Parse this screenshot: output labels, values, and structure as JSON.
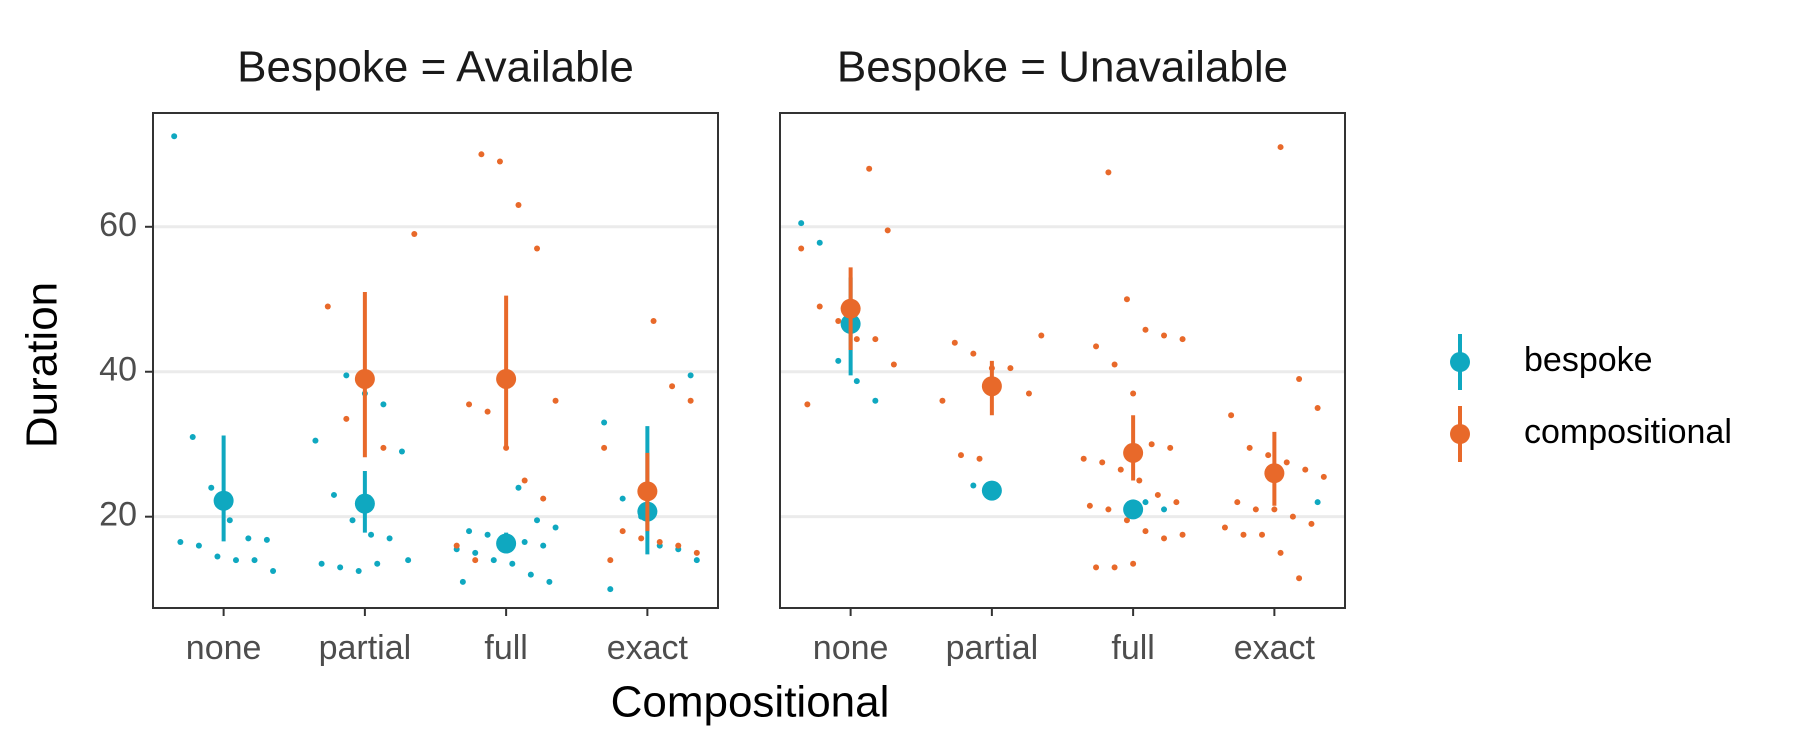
{
  "chart_data": {
    "type": "dotplot",
    "xlabel": "Compositional",
    "ylabel": "Duration",
    "categories": [
      "none",
      "partial",
      "full",
      "exact"
    ],
    "ylim": [
      7.4,
      75.7
    ],
    "yticks": [
      20,
      40,
      60
    ],
    "grid": true,
    "legend": "right",
    "series": [
      {
        "name": "bespoke",
        "color": "#0fa8c0"
      },
      {
        "name": "compositional",
        "color": "#e8692a"
      }
    ],
    "facets": [
      {
        "title": "Bespoke = Available",
        "data": [
          {
            "means": [
              22.2,
              21.8,
              16.3,
              20.7
            ],
            "lower": [
              16.6,
              17.8,
              15,
              14.8
            ],
            "upper": [
              31.2,
              26.3,
              17.8,
              32.5
            ],
            "points": [
              [
                72.5,
                31,
                24,
                19.5,
                17,
                16.8,
                16.5,
                16,
                14.5,
                14,
                14,
                12.5
              ],
              [
                39.5,
                37,
                35.5,
                29,
                30.5,
                23,
                19.5,
                17.5,
                17,
                14,
                13.5,
                13,
                12.5,
                13.5
              ],
              [
                24,
                19.5,
                18.5,
                18,
                17.5,
                17,
                16.5,
                16,
                15.5,
                15,
                14,
                13.5,
                12,
                11,
                11
              ],
              [
                39.5,
                33,
                22.5,
                20,
                16,
                15.5,
                14,
                10
              ]
            ]
          },
          {
            "means": [
              null,
              39,
              39,
              23.5
            ],
            "lower": [
              null,
              28.2,
              29.5,
              18
            ],
            "upper": [
              null,
              51,
              50.5,
              28.8
            ],
            "points": [
              [],
              [
                59,
                49,
                33.5,
                39.5,
                29.5
              ],
              [
                70,
                69,
                63,
                57,
                36,
                35.5,
                34.5,
                29.5,
                25,
                22.5,
                16,
                14
              ],
              [
                47,
                38,
                36,
                29.5,
                18,
                17,
                16.5,
                16,
                15,
                14
              ]
            ]
          }
        ]
      },
      {
        "title": "Bespoke = Unavailable",
        "data": [
          {
            "means": [
              46.6,
              23.6,
              21,
              null
            ],
            "lower": [
              39.5,
              null,
              20,
              null
            ],
            "upper": [
              53,
              null,
              22,
              null
            ],
            "points": [
              [
                60.5,
                57.8,
                41.5,
                38.7,
                36
              ],
              [
                24.3
              ],
              [
                22,
                21
              ],
              [
                22
              ]
            ]
          },
          {
            "means": [
              48.7,
              38,
              28.8,
              26
            ],
            "lower": [
              43,
              34,
              25,
              21.5
            ],
            "upper": [
              54.4,
              41.5,
              34,
              31.7
            ],
            "points": [
              [
                68,
                59.5,
                57,
                49,
                47,
                44.5,
                44.5,
                41,
                35.5
              ],
              [
                45,
                44,
                42.5,
                40.5,
                40.5,
                37,
                36,
                28.5,
                28
              ],
              [
                67.5,
                50,
                45.8,
                45,
                44.5,
                43.5,
                41,
                37,
                30,
                29.5,
                28,
                27.5,
                26.5,
                25,
                23,
                22,
                21.5,
                21,
                19.5,
                18,
                17,
                17.5,
                13,
                13,
                13.5
              ],
              [
                71,
                39,
                35,
                34,
                29.5,
                28.5,
                27.5,
                26.5,
                25.5,
                22,
                21,
                21,
                20,
                19,
                18.5,
                17.5,
                17.5,
                15,
                11.5
              ]
            ]
          }
        ]
      }
    ]
  }
}
